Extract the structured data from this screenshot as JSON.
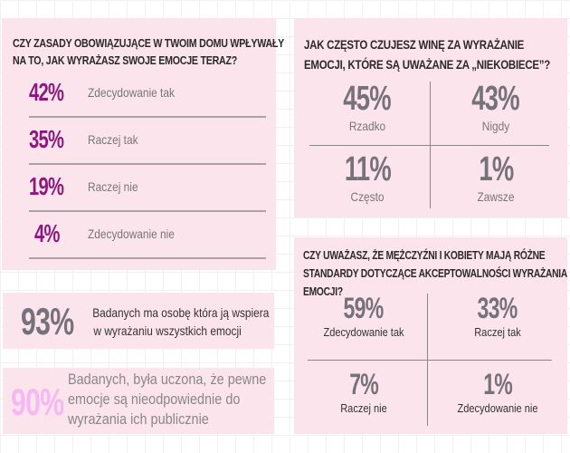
{
  "panel1": {
    "question": [
      "CZY ZASADY OBOWIĄZUJĄCE W TWOIM DOMU WPŁYWAŁY",
      "NA TO, JAK WYRAŻASZ SWOJE EMOCJE TERAZ?"
    ],
    "rows": [
      {
        "value": "42%",
        "label": "Zdecydowanie tak"
      },
      {
        "value": "35%",
        "label": "Raczej tak"
      },
      {
        "value": "19%",
        "label": "Raczej nie"
      },
      {
        "value": "4%",
        "label": "Zdecydowanie nie"
      }
    ]
  },
  "panel2": {
    "question": [
      "JAK CZĘSTO CZUJESZ WINĘ ZA WYRAŻANIE",
      "EMOCJI, KTÓRE SĄ UWAŻANE ZA „NIEKOBIECE”?"
    ],
    "cells": [
      {
        "value": "45%",
        "label": "Rzadko"
      },
      {
        "value": "43%",
        "label": "Nigdy"
      },
      {
        "value": "11%",
        "label": "Często"
      },
      {
        "value": "1%",
        "label": "Zawsze"
      }
    ]
  },
  "stat93": {
    "value": "93%",
    "text": [
      "Badanych ma osobę która ją wspiera",
      "w wyrażaniu wszystkich emocji"
    ]
  },
  "stat90": {
    "value": "90%",
    "text": [
      "Badanych, była uczona, że pewne",
      "emocje są nieodpowiednie do",
      "wyrażania ich publicznie"
    ]
  },
  "panel3": {
    "question": [
      "CZY UWAŻASZ, ŻE MĘŻCZYŹNI I KOBIETY MAJĄ RÓŻNE",
      "STANDARDY DOTYCZĄCE AKCEPTOWALNOŚCI WYRAŻANIA",
      "EMOCJI?"
    ],
    "cells": [
      {
        "value": "59%",
        "label": "Zdecydowanie tak"
      },
      {
        "value": "33%",
        "label": "Raczej tak"
      },
      {
        "value": "7%",
        "label": "Raczej nie"
      },
      {
        "value": "1%",
        "label": "Zdecydowanie nie"
      }
    ]
  },
  "colors": {
    "panel": "#fce4ec",
    "accent_purple": "#8c1a7d",
    "accent_light": "#f6b8f2",
    "grey_number": "#77727a"
  }
}
